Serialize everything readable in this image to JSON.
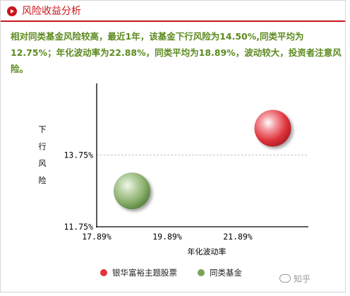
{
  "header": {
    "title": "风险收益分析"
  },
  "summary": "相对同类基金风险较高，最近1年，该基金下行风险为14.50%,同类平均为12.75%；年化波动率为22.88%，同类平均为18.89%，波动较大，投资者注意风险。",
  "chart_data": {
    "type": "scatter",
    "xlabel": "年化波动率",
    "ylabel": "下行风险",
    "x_ticks": [
      "17.89%",
      "19.89%",
      "21.89%"
    ],
    "y_ticks": [
      "11.75%",
      "13.75%"
    ],
    "xlim": [
      17.89,
      23.89
    ],
    "ylim": [
      11.75,
      15.75
    ],
    "series": [
      {
        "name": "银华富裕主题股票",
        "x": 22.88,
        "y": 14.5,
        "color": "#e0343c"
      },
      {
        "name": "同类基金",
        "x": 18.89,
        "y": 12.75,
        "color": "#7aa35a"
      }
    ],
    "legend_position": "bottom"
  },
  "watermark": "知乎"
}
